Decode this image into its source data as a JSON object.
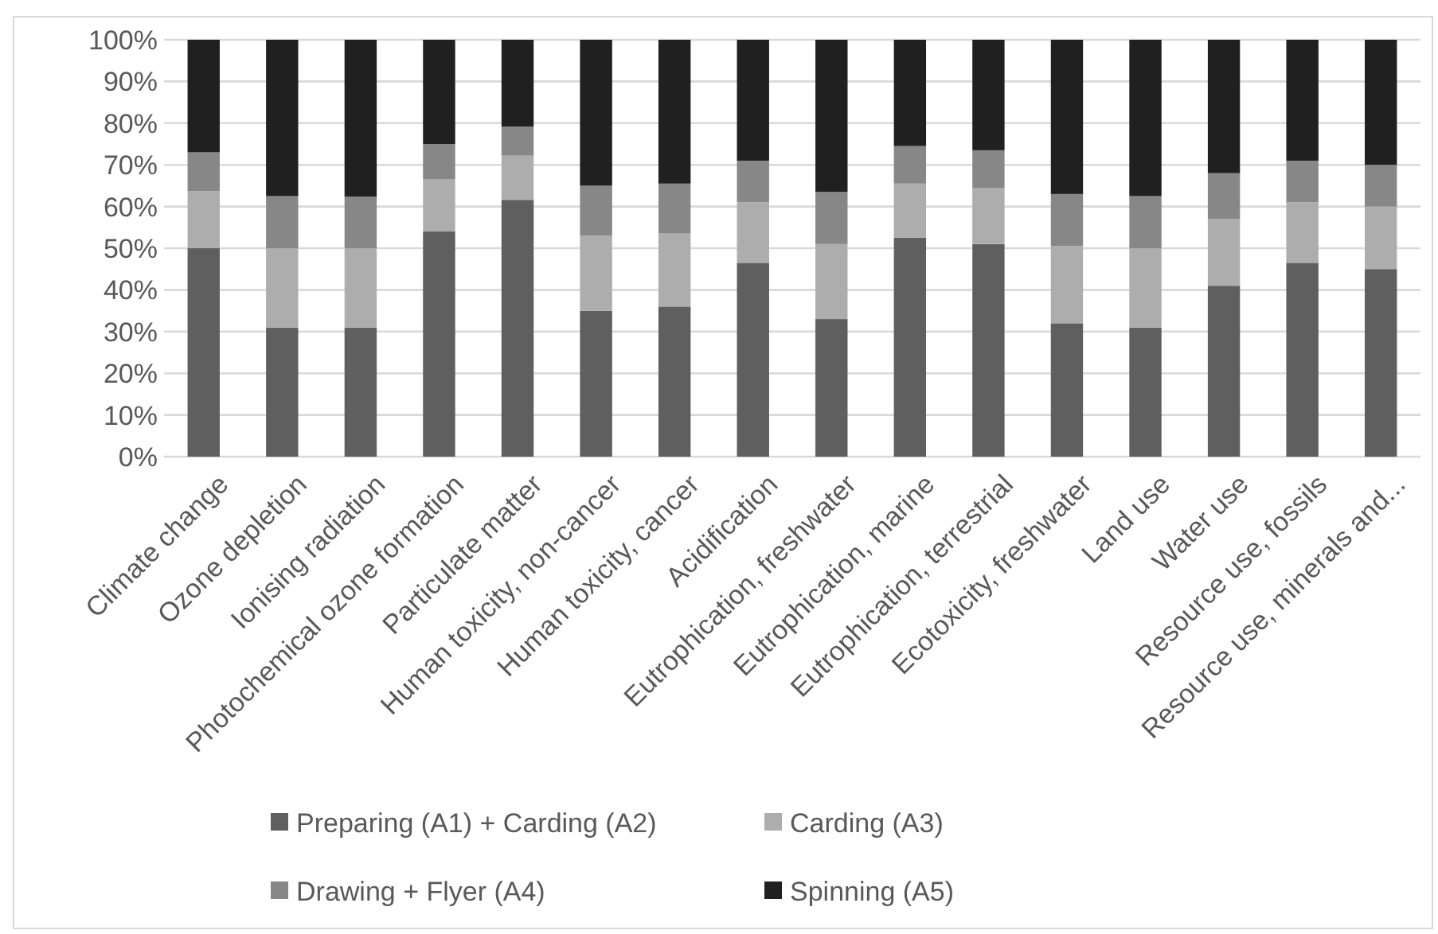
{
  "chart_data": {
    "type": "bar",
    "stacked": true,
    "categories": [
      "Climate change",
      "Ozone depletion",
      "Ionising radiation",
      "Photochemical ozone formation",
      "Particulate matter",
      "Human toxicity, non-cancer",
      "Human toxicity, cancer",
      "Acidification",
      "Eutrophication, freshwater",
      "Eutrophication, marine",
      "Eutrophication, terrestrial",
      "Ecotoxicity, freshwater",
      "Land use",
      "Water use",
      "Resource use, fossils",
      "Resource use, minerals and..."
    ],
    "series": [
      {
        "name": "Preparing (A1) + Carding (A2)",
        "color": "#5f5f5f",
        "values": [
          50,
          31,
          31,
          54,
          61.6,
          35,
          36,
          46.5,
          33,
          52.5,
          51,
          32,
          31,
          41,
          46.5,
          45
        ]
      },
      {
        "name": "Carding (A3)",
        "color": "#adadad",
        "values": [
          13.7,
          19,
          19,
          12.5,
          10.6,
          18,
          17.5,
          14.5,
          18,
          13,
          13.5,
          18.5,
          19,
          16,
          14.5,
          15
        ]
      },
      {
        "name": "Drawing + Flyer (A4)",
        "color": "#878787",
        "values": [
          9.3,
          12.5,
          12.4,
          8.5,
          7,
          12,
          12,
          10,
          12.5,
          9,
          9,
          12.5,
          12.5,
          11,
          10,
          10
        ]
      },
      {
        "name": "Spinning (A5)",
        "color": "#202020",
        "values": [
          27,
          37.5,
          37.6,
          25,
          20.8,
          35,
          34.5,
          29,
          36.5,
          25.5,
          26.5,
          37,
          37.5,
          32,
          29,
          30
        ]
      }
    ],
    "ylim": [
      0,
      100
    ],
    "yticks": [
      {
        "value": 0,
        "label": "0%"
      },
      {
        "value": 10,
        "label": "10%"
      },
      {
        "value": 20,
        "label": "20%"
      },
      {
        "value": 30,
        "label": "30%"
      },
      {
        "value": 40,
        "label": "40%"
      },
      {
        "value": 50,
        "label": "50%"
      },
      {
        "value": 60,
        "label": "60%"
      },
      {
        "value": 70,
        "label": "70%"
      },
      {
        "value": 80,
        "label": "80%"
      },
      {
        "value": 90,
        "label": "90%"
      },
      {
        "value": 100,
        "label": "100%"
      }
    ],
    "grid": "y",
    "legend": "bottom"
  }
}
